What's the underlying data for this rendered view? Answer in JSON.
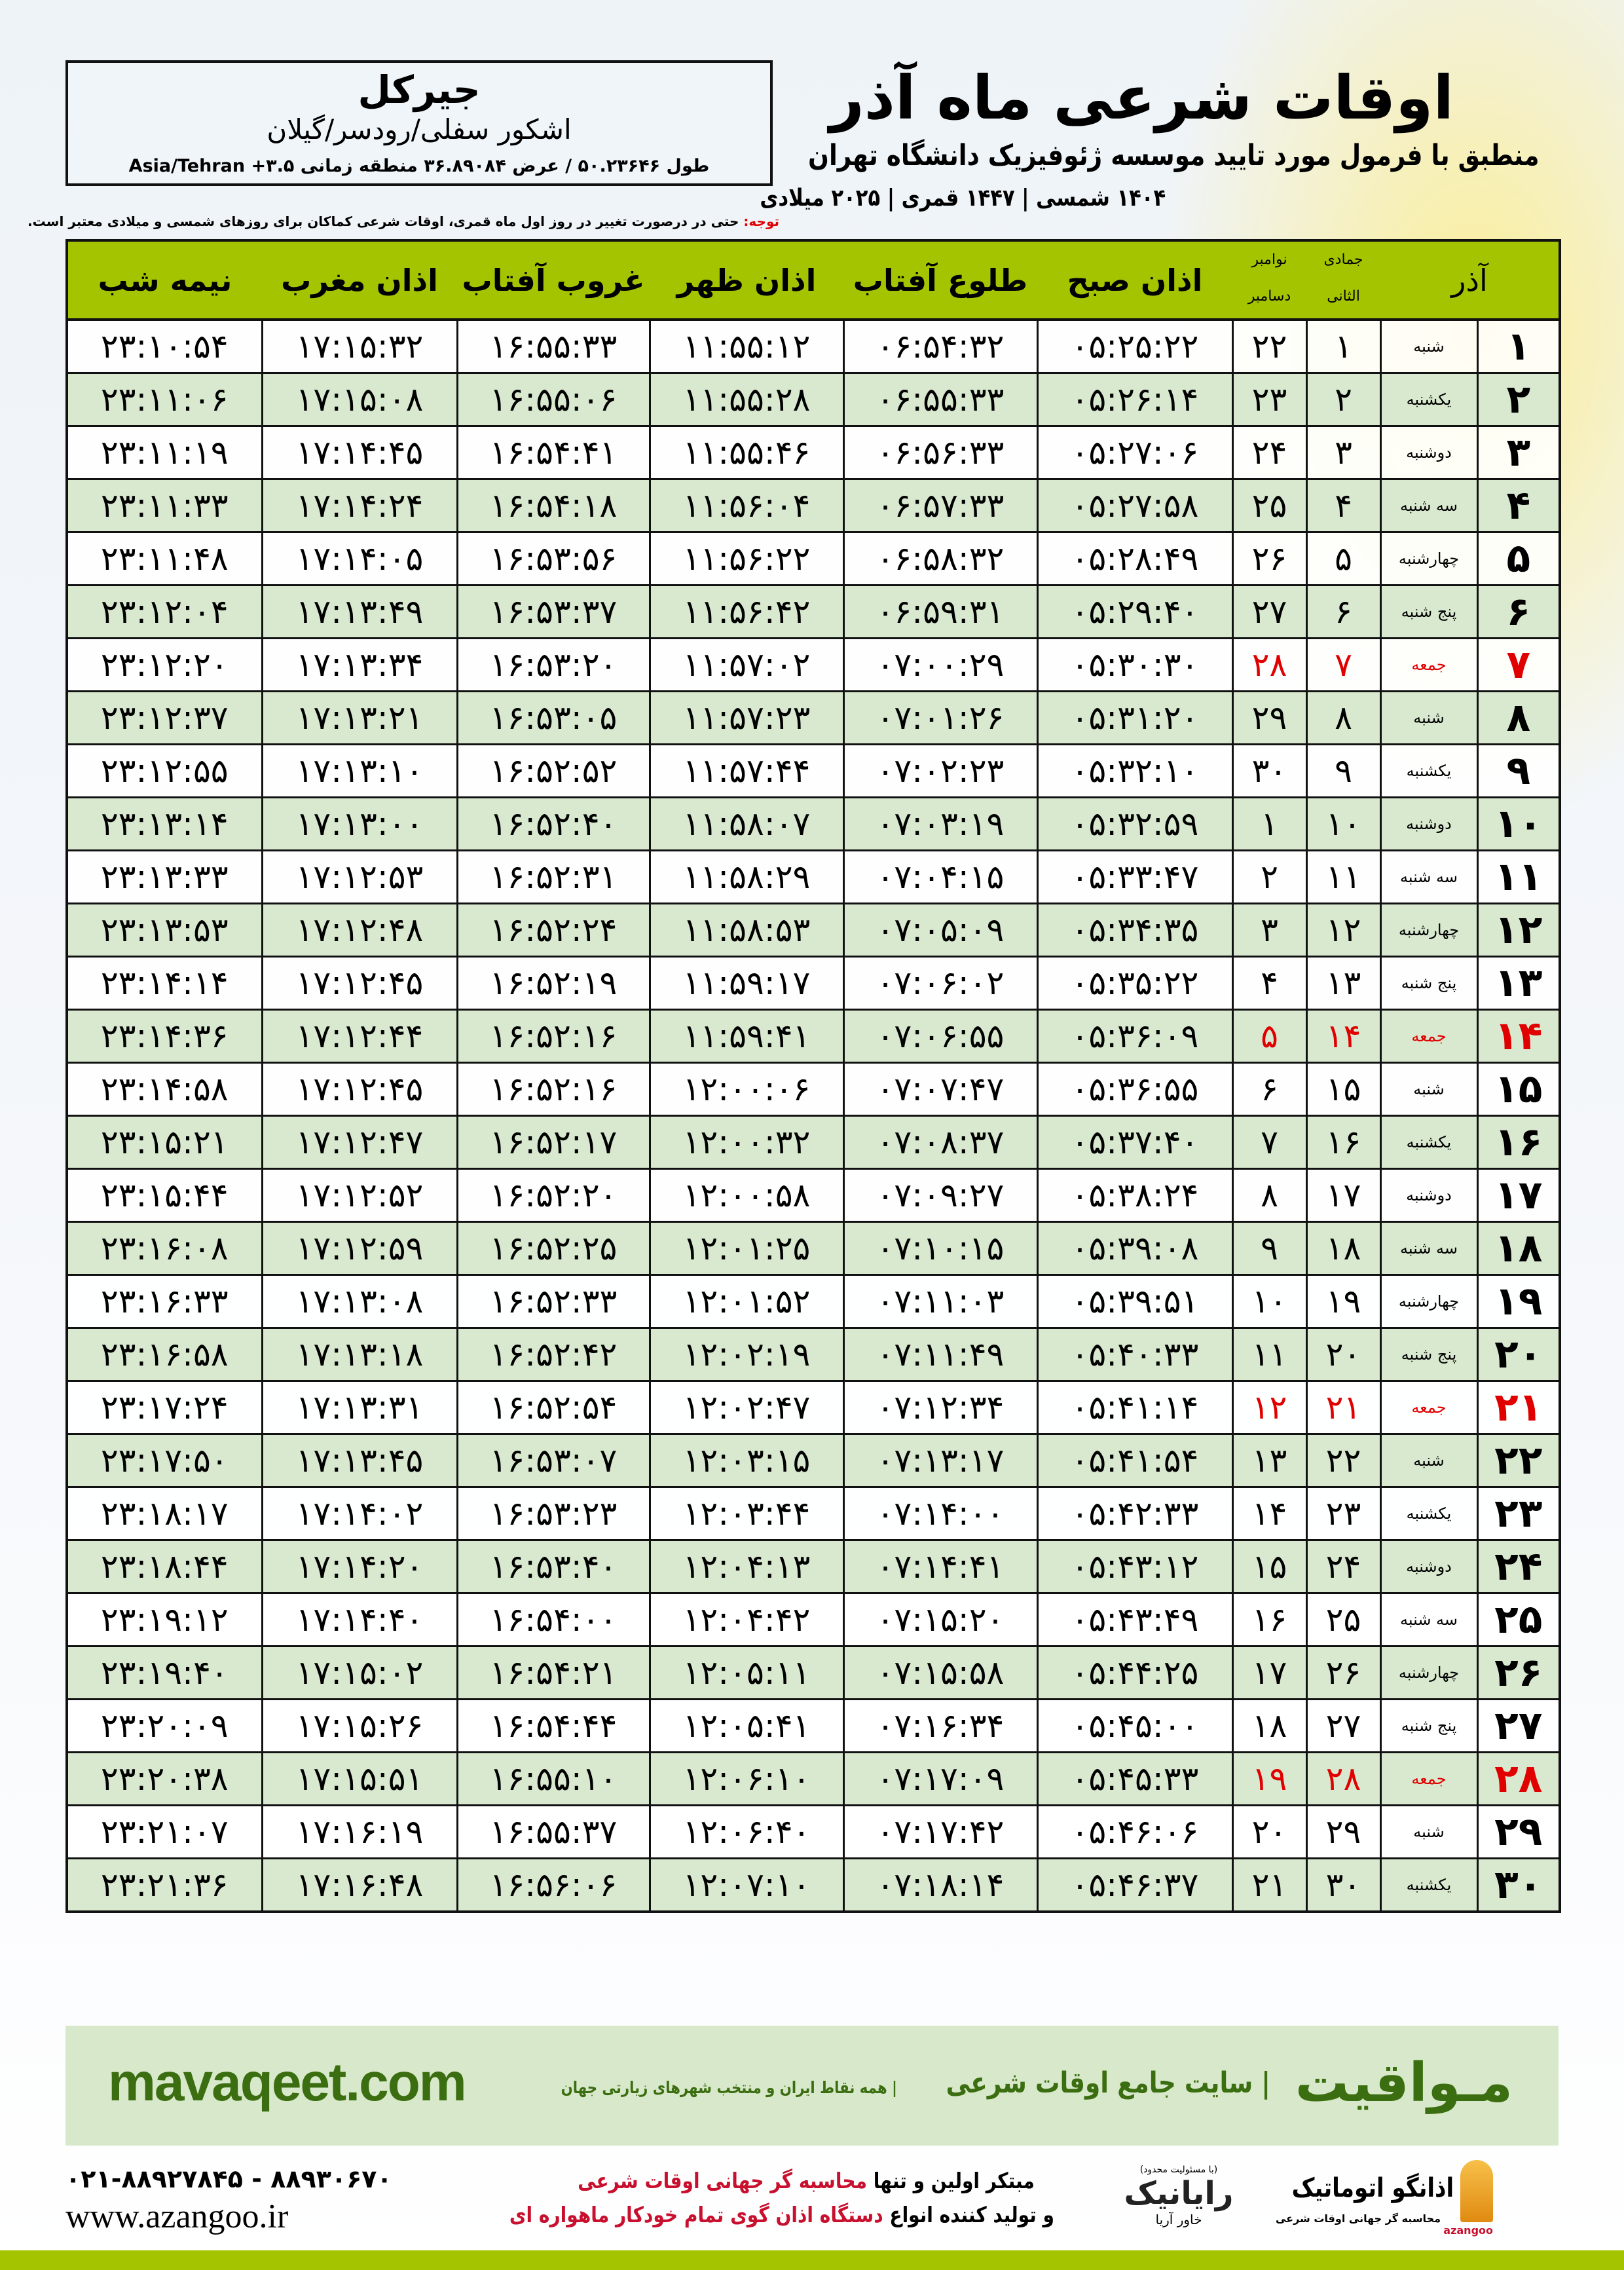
{
  "location": {
    "name": "جیرکل",
    "region": "اشکور سفلی/رودسر/گیلان",
    "coords": "طول ۵۰.۲۳۶۴۶ / عرض ۳۶.۸۹۰۸۴ منطقه زمانی Asia/Tehran +۳.۵"
  },
  "header": {
    "title": "اوقات شرعی ماه آذر",
    "subtitle": "منطبق با فرمول مورد تایید موسسه ژئوفیزیک دانشگاه تهران",
    "years": "۱۴۰۴ شمسی | ۱۴۴۷ قمری | ۲۰۲۵ میلادی"
  },
  "note": {
    "label": "توجه:",
    "text": " حتی در درصورت تغییر در روز اول ماه قمری، اوقات شرعی کماکان برای روزهای شمسی و میلادی معتبر است."
  },
  "columns": {
    "azar": "آذر",
    "jumada": "جمادی الثانی",
    "november": "نوامبر",
    "december": "دسامبر",
    "fajr": "اذان صبح",
    "sunrise": "طلوع آفتاب",
    "dhuhr": "اذان ظهر",
    "sunset": "غروب آفتاب",
    "maghrib": "اذان مغرب",
    "midnight": "نیمه شب"
  },
  "highlight_color": "#e00000",
  "header_color": "#a5c400",
  "rows": [
    [
      "۱",
      "شنبه",
      "۱",
      "۲۲",
      "۰۵:۲۵:۲۲",
      "۰۶:۵۴:۳۲",
      "۱۱:۵۵:۱۲",
      "۱۶:۵۵:۳۳",
      "۱۷:۱۵:۳۲",
      "۲۳:۱۰:۵۴"
    ],
    [
      "۲",
      "یکشنبه",
      "۲",
      "۲۳",
      "۰۵:۲۶:۱۴",
      "۰۶:۵۵:۳۳",
      "۱۱:۵۵:۲۸",
      "۱۶:۵۵:۰۶",
      "۱۷:۱۵:۰۸",
      "۲۳:۱۱:۰۶"
    ],
    [
      "۳",
      "دوشنبه",
      "۳",
      "۲۴",
      "۰۵:۲۷:۰۶",
      "۰۶:۵۶:۳۳",
      "۱۱:۵۵:۴۶",
      "۱۶:۵۴:۴۱",
      "۱۷:۱۴:۴۵",
      "۲۳:۱۱:۱۹"
    ],
    [
      "۴",
      "سه شنبه",
      "۴",
      "۲۵",
      "۰۵:۲۷:۵۸",
      "۰۶:۵۷:۳۳",
      "۱۱:۵۶:۰۴",
      "۱۶:۵۴:۱۸",
      "۱۷:۱۴:۲۴",
      "۲۳:۱۱:۳۳"
    ],
    [
      "۵",
      "چهارشنبه",
      "۵",
      "۲۶",
      "۰۵:۲۸:۴۹",
      "۰۶:۵۸:۳۲",
      "۱۱:۵۶:۲۲",
      "۱۶:۵۳:۵۶",
      "۱۷:۱۴:۰۵",
      "۲۳:۱۱:۴۸"
    ],
    [
      "۶",
      "پنج شنبه",
      "۶",
      "۲۷",
      "۰۵:۲۹:۴۰",
      "۰۶:۵۹:۳۱",
      "۱۱:۵۶:۴۲",
      "۱۶:۵۳:۳۷",
      "۱۷:۱۳:۴۹",
      "۲۳:۱۲:۰۴"
    ],
    [
      "۷",
      "جمعه",
      "۷",
      "۲۸",
      "۰۵:۳۰:۳۰",
      "۰۷:۰۰:۲۹",
      "۱۱:۵۷:۰۲",
      "۱۶:۵۳:۲۰",
      "۱۷:۱۳:۳۴",
      "۲۳:۱۲:۲۰"
    ],
    [
      "۸",
      "شنبه",
      "۸",
      "۲۹",
      "۰۵:۳۱:۲۰",
      "۰۷:۰۱:۲۶",
      "۱۱:۵۷:۲۳",
      "۱۶:۵۳:۰۵",
      "۱۷:۱۳:۲۱",
      "۲۳:۱۲:۳۷"
    ],
    [
      "۹",
      "یکشنبه",
      "۹",
      "۳۰",
      "۰۵:۳۲:۱۰",
      "۰۷:۰۲:۲۳",
      "۱۱:۵۷:۴۴",
      "۱۶:۵۲:۵۲",
      "۱۷:۱۳:۱۰",
      "۲۳:۱۲:۵۵"
    ],
    [
      "۱۰",
      "دوشنبه",
      "۱۰",
      "۱",
      "۰۵:۳۲:۵۹",
      "۰۷:۰۳:۱۹",
      "۱۱:۵۸:۰۷",
      "۱۶:۵۲:۴۰",
      "۱۷:۱۳:۰۰",
      "۲۳:۱۳:۱۴"
    ],
    [
      "۱۱",
      "سه شنبه",
      "۱۱",
      "۲",
      "۰۵:۳۳:۴۷",
      "۰۷:۰۴:۱۵",
      "۱۱:۵۸:۲۹",
      "۱۶:۵۲:۳۱",
      "۱۷:۱۲:۵۳",
      "۲۳:۱۳:۳۳"
    ],
    [
      "۱۲",
      "چهارشنبه",
      "۱۲",
      "۳",
      "۰۵:۳۴:۳۵",
      "۰۷:۰۵:۰۹",
      "۱۱:۵۸:۵۳",
      "۱۶:۵۲:۲۴",
      "۱۷:۱۲:۴۸",
      "۲۳:۱۳:۵۳"
    ],
    [
      "۱۳",
      "پنج شنبه",
      "۱۳",
      "۴",
      "۰۵:۳۵:۲۲",
      "۰۷:۰۶:۰۲",
      "۱۱:۵۹:۱۷",
      "۱۶:۵۲:۱۹",
      "۱۷:۱۲:۴۵",
      "۲۳:۱۴:۱۴"
    ],
    [
      "۱۴",
      "جمعه",
      "۱۴",
      "۵",
      "۰۵:۳۶:۰۹",
      "۰۷:۰۶:۵۵",
      "۱۱:۵۹:۴۱",
      "۱۶:۵۲:۱۶",
      "۱۷:۱۲:۴۴",
      "۲۳:۱۴:۳۶"
    ],
    [
      "۱۵",
      "شنبه",
      "۱۵",
      "۶",
      "۰۵:۳۶:۵۵",
      "۰۷:۰۷:۴۷",
      "۱۲:۰۰:۰۶",
      "۱۶:۵۲:۱۶",
      "۱۷:۱۲:۴۵",
      "۲۳:۱۴:۵۸"
    ],
    [
      "۱۶",
      "یکشنبه",
      "۱۶",
      "۷",
      "۰۵:۳۷:۴۰",
      "۰۷:۰۸:۳۷",
      "۱۲:۰۰:۳۲",
      "۱۶:۵۲:۱۷",
      "۱۷:۱۲:۴۷",
      "۲۳:۱۵:۲۱"
    ],
    [
      "۱۷",
      "دوشنبه",
      "۱۷",
      "۸",
      "۰۵:۳۸:۲۴",
      "۰۷:۰۹:۲۷",
      "۱۲:۰۰:۵۸",
      "۱۶:۵۲:۲۰",
      "۱۷:۱۲:۵۲",
      "۲۳:۱۵:۴۴"
    ],
    [
      "۱۸",
      "سه شنبه",
      "۱۸",
      "۹",
      "۰۵:۳۹:۰۸",
      "۰۷:۱۰:۱۵",
      "۱۲:۰۱:۲۵",
      "۱۶:۵۲:۲۵",
      "۱۷:۱۲:۵۹",
      "۲۳:۱۶:۰۸"
    ],
    [
      "۱۹",
      "چهارشنبه",
      "۱۹",
      "۱۰",
      "۰۵:۳۹:۵۱",
      "۰۷:۱۱:۰۳",
      "۱۲:۰۱:۵۲",
      "۱۶:۵۲:۳۳",
      "۱۷:۱۳:۰۸",
      "۲۳:۱۶:۳۳"
    ],
    [
      "۲۰",
      "پنج شنبه",
      "۲۰",
      "۱۱",
      "۰۵:۴۰:۳۳",
      "۰۷:۱۱:۴۹",
      "۱۲:۰۲:۱۹",
      "۱۶:۵۲:۴۲",
      "۱۷:۱۳:۱۸",
      "۲۳:۱۶:۵۸"
    ],
    [
      "۲۱",
      "جمعه",
      "۲۱",
      "۱۲",
      "۰۵:۴۱:۱۴",
      "۰۷:۱۲:۳۴",
      "۱۲:۰۲:۴۷",
      "۱۶:۵۲:۵۴",
      "۱۷:۱۳:۳۱",
      "۲۳:۱۷:۲۴"
    ],
    [
      "۲۲",
      "شنبه",
      "۲۲",
      "۱۳",
      "۰۵:۴۱:۵۴",
      "۰۷:۱۳:۱۷",
      "۱۲:۰۳:۱۵",
      "۱۶:۵۳:۰۷",
      "۱۷:۱۳:۴۵",
      "۲۳:۱۷:۵۰"
    ],
    [
      "۲۳",
      "یکشنبه",
      "۲۳",
      "۱۴",
      "۰۵:۴۲:۳۳",
      "۰۷:۱۴:۰۰",
      "۱۲:۰۳:۴۴",
      "۱۶:۵۳:۲۳",
      "۱۷:۱۴:۰۲",
      "۲۳:۱۸:۱۷"
    ],
    [
      "۲۴",
      "دوشنبه",
      "۲۴",
      "۱۵",
      "۰۵:۴۳:۱۲",
      "۰۷:۱۴:۴۱",
      "۱۲:۰۴:۱۳",
      "۱۶:۵۳:۴۰",
      "۱۷:۱۴:۲۰",
      "۲۳:۱۸:۴۴"
    ],
    [
      "۲۵",
      "سه شنبه",
      "۲۵",
      "۱۶",
      "۰۵:۴۳:۴۹",
      "۰۷:۱۵:۲۰",
      "۱۲:۰۴:۴۲",
      "۱۶:۵۴:۰۰",
      "۱۷:۱۴:۴۰",
      "۲۳:۱۹:۱۲"
    ],
    [
      "۲۶",
      "چهارشنبه",
      "۲۶",
      "۱۷",
      "۰۵:۴۴:۲۵",
      "۰۷:۱۵:۵۸",
      "۱۲:۰۵:۱۱",
      "۱۶:۵۴:۲۱",
      "۱۷:۱۵:۰۲",
      "۲۳:۱۹:۴۰"
    ],
    [
      "۲۷",
      "پنج شنبه",
      "۲۷",
      "۱۸",
      "۰۵:۴۵:۰۰",
      "۰۷:۱۶:۳۴",
      "۱۲:۰۵:۴۱",
      "۱۶:۵۴:۴۴",
      "۱۷:۱۵:۲۶",
      "۲۳:۲۰:۰۹"
    ],
    [
      "۲۸",
      "جمعه",
      "۲۸",
      "۱۹",
      "۰۵:۴۵:۳۳",
      "۰۷:۱۷:۰۹",
      "۱۲:۰۶:۱۰",
      "۱۶:۵۵:۱۰",
      "۱۷:۱۵:۵۱",
      "۲۳:۲۰:۳۸"
    ],
    [
      "۲۹",
      "شنبه",
      "۲۹",
      "۲۰",
      "۰۵:۴۶:۰۶",
      "۰۷:۱۷:۴۲",
      "۱۲:۰۶:۴۰",
      "۱۶:۵۵:۳۷",
      "۱۷:۱۶:۱۹",
      "۲۳:۲۱:۰۷"
    ],
    [
      "۳۰",
      "یکشنبه",
      "۳۰",
      "۲۱",
      "۰۵:۴۶:۳۷",
      "۰۷:۱۸:۱۴",
      "۱۲:۰۷:۱۰",
      "۱۶:۵۶:۰۶",
      "۱۷:۱۶:۴۸",
      "۲۳:۲۱:۳۶"
    ]
  ],
  "footer": {
    "brand": "مـواقیت",
    "brand_sub": "| سایت جامع اوقات شرعی",
    "brand_sub2": "| همه نقاط ایران و منتخب شهرهای زیارتی جهان",
    "site": "mavaqeet.com",
    "phone": "۰۲۱-۸۸۹۲۷۸۴۵ - ۸۸۹۳۰۶۷۰",
    "web": "www.azangoo.ir",
    "promo1_a": "مبتکر اولین و تنها ",
    "promo1_b": "محاسبه گر جهانی اوقات شرعی",
    "promo2_a": "و تولید کننده انواع ",
    "promo2_b": "دستگاه اذان گوی تمام خودکار ماهواره ای",
    "rayanik_note": "(با مسئولیت محدود)",
    "rayanik_name": "رایانیک",
    "rayanik_sub": "خاور آریا",
    "azangoo_name": "اذانگو اتوماتیک",
    "azangoo_en": "azangoo",
    "azangoo_tag": "محاسبه گر جهانی اوقات شرعی"
  }
}
